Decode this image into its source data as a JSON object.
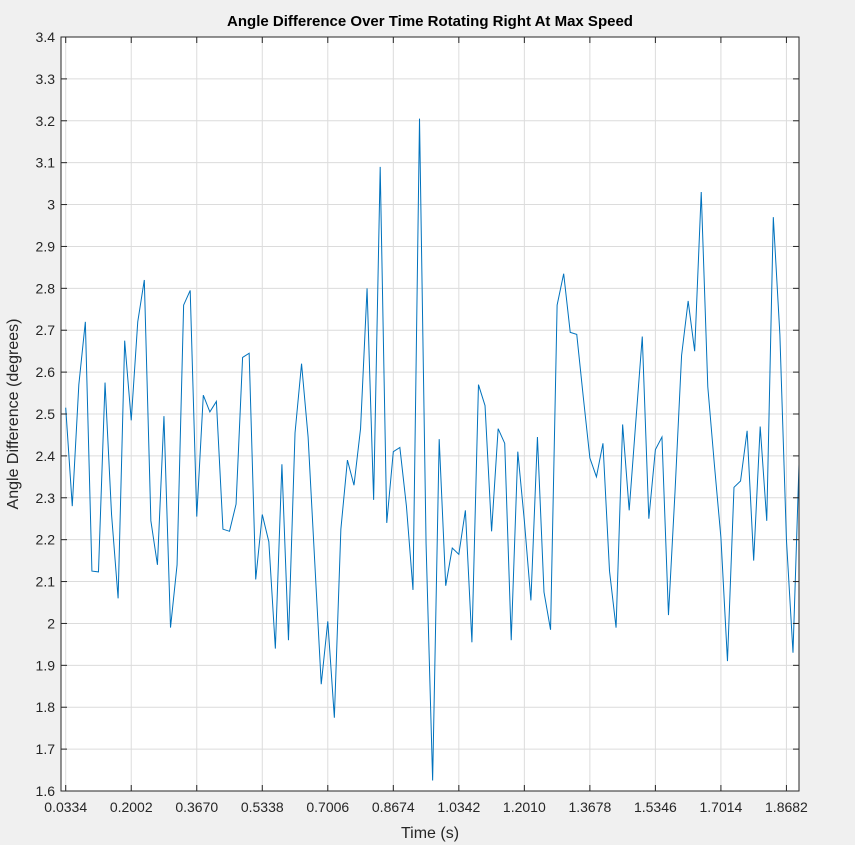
{
  "chart_data": {
    "type": "line",
    "title": "Angle Difference Over Time Rotating Right At Max Speed",
    "xlabel": "Time (s)",
    "ylabel": "Angle Difference (degrees)",
    "xlim": [
      0.0214,
      1.9002
    ],
    "ylim": [
      1.6,
      3.4
    ],
    "grid": true,
    "xticks": [
      0.0334,
      0.2002,
      0.367,
      0.5338,
      0.7006,
      0.8674,
      1.0342,
      1.201,
      1.3678,
      1.5346,
      1.7014,
      1.8682
    ],
    "xtick_labels": [
      "0.0334",
      "0.2002",
      "0.3670",
      "0.5338",
      "0.7006",
      "0.8674",
      "1.0342",
      "1.2010",
      "1.3678",
      "1.5346",
      "1.7014",
      "1.8682"
    ],
    "yticks": [
      1.6,
      1.7,
      1.8,
      1.9,
      2.0,
      2.1,
      2.2,
      2.3,
      2.4,
      2.5,
      2.6,
      2.7,
      2.8,
      2.9,
      3.0,
      3.1,
      3.2,
      3.3,
      3.4
    ],
    "ytick_labels": [
      "1.6",
      "1.7",
      "1.8",
      "1.9",
      "2",
      "2.1",
      "2.2",
      "2.3",
      "2.4",
      "2.5",
      "2.6",
      "2.7",
      "2.8",
      "2.9",
      "3",
      "3.1",
      "3.2",
      "3.3",
      "3.4"
    ],
    "colors": {
      "line": "#0072BD",
      "axes_bg": "#ffffff",
      "figure_bg": "#f0f0f0"
    },
    "series": [
      {
        "x": [
          0.0334,
          0.0501,
          0.0668,
          0.0834,
          0.1001,
          0.1168,
          0.1335,
          0.1501,
          0.1668,
          0.1835,
          0.2002,
          0.2168,
          0.2335,
          0.2502,
          0.2669,
          0.2835,
          0.3002,
          0.3169,
          0.3336,
          0.3503,
          0.367,
          0.3837,
          0.4004,
          0.417,
          0.4337,
          0.4504,
          0.4671,
          0.4837,
          0.5004,
          0.5171,
          0.5338,
          0.5505,
          0.5671,
          0.5838,
          0.6005,
          0.6172,
          0.6338,
          0.6505,
          0.6672,
          0.6839,
          0.7006,
          0.7173,
          0.7339,
          0.7506,
          0.7673,
          0.784,
          0.8006,
          0.8173,
          0.834,
          0.8507,
          0.8674,
          0.8841,
          0.9008,
          0.9175,
          0.9341,
          0.9508,
          0.9675,
          0.9842,
          1.0008,
          1.0175,
          1.0342,
          1.0509,
          1.0675,
          1.0842,
          1.1009,
          1.1176,
          1.1343,
          1.151,
          1.1676,
          1.1843,
          1.201,
          1.2177,
          1.2343,
          1.251,
          1.2677,
          1.2844,
          1.3011,
          1.3178,
          1.3344,
          1.3511,
          1.3678,
          1.3845,
          1.4011,
          1.4178,
          1.4345,
          1.4512,
          1.4679,
          1.4846,
          1.5012,
          1.5179,
          1.5346,
          1.5513,
          1.5679,
          1.5846,
          1.6013,
          1.618,
          1.6346,
          1.6513,
          1.668,
          1.6847,
          1.7014,
          1.7181,
          1.7347,
          1.7514,
          1.7681,
          1.7848,
          1.8014,
          1.8181,
          1.8348,
          1.8515,
          1.8682,
          1.8849,
          1.9002
        ],
        "values": [
          2.515,
          2.28,
          2.57,
          2.72,
          2.125,
          2.123,
          2.575,
          2.26,
          2.06,
          2.675,
          2.485,
          2.72,
          2.82,
          2.245,
          2.14,
          2.495,
          1.99,
          2.14,
          2.76,
          2.795,
          2.255,
          2.545,
          2.505,
          2.53,
          2.225,
          2.22,
          2.285,
          2.635,
          2.645,
          2.105,
          2.26,
          2.195,
          1.94,
          2.38,
          1.96,
          2.455,
          2.62,
          2.445,
          2.15,
          1.855,
          2.005,
          1.775,
          2.225,
          2.39,
          2.33,
          2.465,
          2.8,
          2.295,
          3.09,
          2.24,
          2.41,
          2.42,
          2.28,
          2.08,
          3.205,
          2.19,
          1.625,
          2.44,
          2.09,
          2.18,
          2.165,
          2.27,
          1.955,
          2.57,
          2.52,
          2.22,
          2.465,
          2.43,
          1.96,
          2.41,
          2.245,
          2.055,
          2.445,
          2.075,
          1.985,
          2.76,
          2.835,
          2.695,
          2.69,
          2.54,
          2.395,
          2.35,
          2.43,
          2.125,
          1.99,
          2.475,
          2.27,
          2.48,
          2.685,
          2.25,
          2.415,
          2.445,
          2.02,
          2.315,
          2.64,
          2.77,
          2.65,
          3.03,
          2.565,
          2.38,
          2.205,
          1.91,
          2.325,
          2.34,
          2.46,
          2.15,
          2.47,
          2.245,
          2.97,
          2.69,
          2.2,
          1.93,
          2.38
        ]
      }
    ]
  }
}
